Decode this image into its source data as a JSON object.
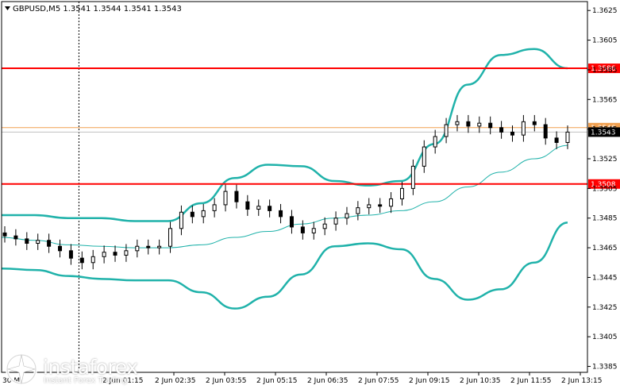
{
  "chart_data": {
    "type": "candlestick",
    "symbol_header": "GBPUSD,M5  1.3541 1.3544 1.3541 1.3543",
    "y_ticks": [
      "1.3625",
      "1.3605",
      "1.3585",
      "1.3565",
      "1.3545",
      "1.3525",
      "1.3505",
      "1.3485",
      "1.3465",
      "1.3445",
      "1.3425",
      "1.3405",
      "1.3385"
    ],
    "ylim": [
      1.3381,
      1.3631
    ],
    "x_ticks": [
      "2 Jun 02:35",
      "2 Jun 03:55",
      "2 Jun 05:15",
      "2 Jun 06:35",
      "2 Jun 07:55",
      "2 Jun 09:15",
      "2 Jun 10:35",
      "2 Jun 11:55",
      "2 Jun 13:15"
    ],
    "x_left_partial": "30 M",
    "x_hidden_tick": "2 Jun 01:15",
    "levels": [
      {
        "label": "1.3586",
        "value": 1.3586,
        "color": "#ff0000",
        "kind": "resistance"
      },
      {
        "label": "1.3546",
        "value": 1.3546,
        "color": "#f0a050",
        "kind": "price-line"
      },
      {
        "label": "1.3508",
        "value": 1.3508,
        "color": "#ff0000",
        "kind": "support"
      }
    ],
    "current_price": {
      "label": "1.3543",
      "value": 1.3543
    },
    "bollinger": {
      "color": "#20b2aa",
      "upper": [
        1.3487,
        1.3487,
        1.3485,
        1.3485,
        1.3483,
        1.3483,
        1.3495,
        1.3512,
        1.3521,
        1.352,
        1.351,
        1.3507,
        1.351,
        1.3535,
        1.3575,
        1.3595,
        1.3599,
        1.3586
      ],
      "lower": [
        1.3451,
        1.345,
        1.3446,
        1.3444,
        1.3443,
        1.3443,
        1.3435,
        1.3424,
        1.3432,
        1.3447,
        1.3466,
        1.3468,
        1.3464,
        1.3444,
        1.343,
        1.3437,
        1.3455,
        1.3482
      ]
    },
    "moving_average": {
      "color": "#20b2aa",
      "values": [
        1.3472,
        1.347,
        1.3467,
        1.3466,
        1.3465,
        1.3465,
        1.3467,
        1.3472,
        1.3476,
        1.3481,
        1.3485,
        1.3487,
        1.349,
        1.3496,
        1.3506,
        1.3516,
        1.3525,
        1.3534
      ]
    },
    "candle_closes": [
      1.3473,
      1.3471,
      1.3468,
      1.347,
      1.3466,
      1.3463,
      1.3458,
      1.3455,
      1.3459,
      1.3462,
      1.346,
      1.3463,
      1.3466,
      1.3465,
      1.3466,
      1.3478,
      1.3489,
      1.3486,
      1.349,
      1.3494,
      1.3503,
      1.3496,
      1.3491,
      1.3493,
      1.349,
      1.3486,
      1.3479,
      1.3475,
      1.3478,
      1.3481,
      1.3485,
      1.3488,
      1.3492,
      1.3494,
      1.3493,
      1.3498,
      1.3505,
      1.352,
      1.3533,
      1.354,
      1.3548,
      1.355,
      1.3547,
      1.3549,
      1.3546,
      1.3543,
      1.3541,
      1.355,
      1.3548,
      1.3539,
      1.3536,
      1.3543
    ],
    "crosshair_x_index": 6
  },
  "watermark": {
    "name": "instaforex",
    "tagline": "Instant Forex Trading"
  }
}
